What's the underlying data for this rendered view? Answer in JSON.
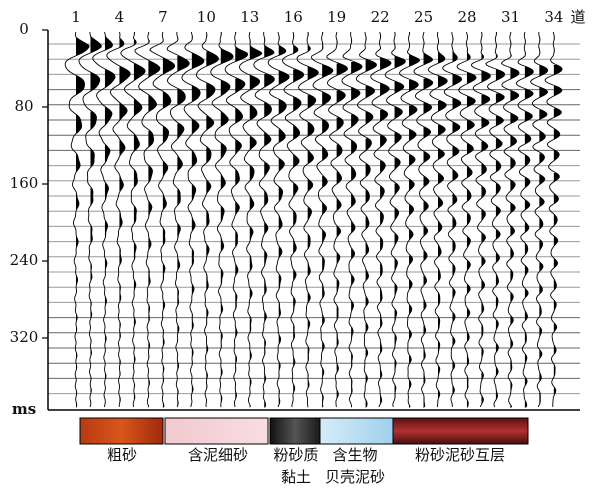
{
  "x_axis": {
    "ticks": [
      "1",
      "4",
      "7",
      "10",
      "13",
      "16",
      "19",
      "22",
      "25",
      "28",
      "31",
      "34"
    ],
    "unit": "道"
  },
  "y_axis": {
    "ticks": [
      "0",
      "80",
      "160",
      "240",
      "320"
    ],
    "unit": "ms"
  },
  "legend": [
    {
      "lines": [
        "粗砂"
      ]
    },
    {
      "lines": [
        "含泥细砂"
      ]
    },
    {
      "lines": [
        "粉砂质",
        "黏土"
      ]
    },
    {
      "lines": [
        "含生物",
        "贝壳泥砂"
      ]
    },
    {
      "lines": [
        "粉砂泥砂互层"
      ]
    }
  ]
}
